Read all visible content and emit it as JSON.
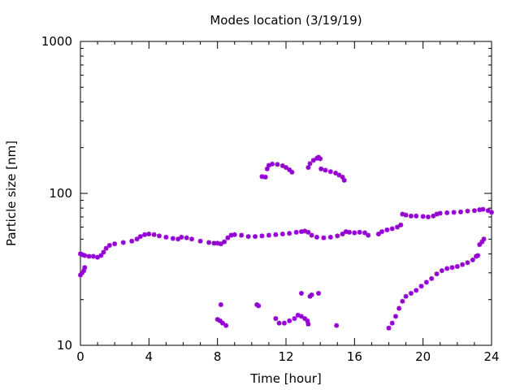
{
  "chart_data": {
    "type": "scatter",
    "title": "Modes location (3/19/19)",
    "xlabel": "Time [hour]",
    "ylabel": "Particle size [nm]",
    "xlim": [
      0,
      24
    ],
    "ylim": [
      10,
      1000
    ],
    "yscale": "log",
    "grid": false,
    "legend": "none",
    "marker_color": "#9400D3",
    "x_ticks": [
      0,
      4,
      8,
      12,
      16,
      20,
      24
    ],
    "x_tick_labels": [
      "0",
      "4",
      "8",
      "12",
      "16",
      "20",
      "24"
    ],
    "y_ticks": [
      10,
      100,
      1000
    ],
    "y_tick_labels": [
      "10",
      "100",
      "1000"
    ],
    "series": [
      {
        "points": [
          [
            0.0,
            40
          ],
          [
            0.1,
            39.5
          ],
          [
            0.25,
            39
          ],
          [
            0.5,
            38.5
          ],
          [
            0.75,
            38.5
          ],
          [
            1.0,
            38
          ],
          [
            1.2,
            39
          ],
          [
            1.35,
            41
          ],
          [
            1.5,
            43.5
          ],
          [
            1.7,
            45.5
          ],
          [
            2.0,
            46.5
          ],
          [
            2.5,
            47.5
          ],
          [
            3.0,
            48.5
          ],
          [
            3.3,
            50
          ],
          [
            3.5,
            52
          ],
          [
            3.75,
            53.5
          ],
          [
            4.0,
            54
          ],
          [
            4.3,
            53.5
          ],
          [
            4.6,
            52.5
          ],
          [
            5.0,
            51.5
          ],
          [
            5.4,
            50.5
          ],
          [
            5.7,
            50
          ],
          [
            5.9,
            51.5
          ],
          [
            6.2,
            51
          ],
          [
            6.5,
            50
          ],
          [
            7.0,
            48.5
          ],
          [
            7.5,
            47.5
          ],
          [
            7.8,
            47
          ],
          [
            8.0,
            47
          ],
          [
            8.2,
            46.5
          ],
          [
            8.4,
            48
          ],
          [
            8.6,
            51
          ],
          [
            8.8,
            53
          ],
          [
            9.0,
            53.5
          ],
          [
            9.4,
            53
          ],
          [
            9.8,
            52
          ],
          [
            10.2,
            52
          ],
          [
            10.6,
            52.5
          ],
          [
            11.0,
            53
          ],
          [
            11.4,
            53.5
          ],
          [
            11.8,
            54
          ],
          [
            12.2,
            54.5
          ],
          [
            12.6,
            55.5
          ],
          [
            12.9,
            56
          ],
          [
            13.1,
            56.5
          ],
          [
            13.3,
            55.5
          ],
          [
            13.5,
            53
          ],
          [
            13.8,
            51.5
          ],
          [
            14.2,
            51
          ],
          [
            14.6,
            51.5
          ],
          [
            15.0,
            52.5
          ],
          [
            15.3,
            54
          ],
          [
            15.5,
            56
          ],
          [
            15.7,
            55.5
          ],
          [
            16.0,
            55
          ],
          [
            16.3,
            55.5
          ],
          [
            16.6,
            55
          ],
          [
            16.8,
            53
          ],
          [
            17.4,
            54
          ],
          [
            17.6,
            56
          ],
          [
            17.9,
            57.5
          ],
          [
            18.2,
            58.5
          ],
          [
            18.5,
            60
          ],
          [
            18.7,
            62
          ],
          [
            18.8,
            73
          ],
          [
            19.0,
            72
          ],
          [
            19.3,
            71
          ],
          [
            19.6,
            71
          ],
          [
            20.0,
            70.5
          ],
          [
            20.3,
            70
          ],
          [
            20.6,
            71
          ],
          [
            20.8,
            73
          ],
          [
            21.0,
            74
          ],
          [
            21.4,
            74.5
          ],
          [
            21.8,
            75
          ],
          [
            22.2,
            75.5
          ],
          [
            22.6,
            76.5
          ],
          [
            23.0,
            77
          ],
          [
            23.3,
            78
          ],
          [
            23.5,
            78.5
          ],
          [
            23.8,
            77
          ],
          [
            24.0,
            75
          ],
          [
            0.0,
            29
          ],
          [
            0.1,
            30
          ],
          [
            0.2,
            31
          ],
          [
            0.25,
            32.5
          ],
          [
            10.6,
            129
          ],
          [
            10.8,
            128
          ],
          [
            10.9,
            145
          ],
          [
            11.0,
            153
          ],
          [
            11.2,
            156
          ],
          [
            11.5,
            155
          ],
          [
            11.8,
            152
          ],
          [
            12.0,
            148
          ],
          [
            12.2,
            143
          ],
          [
            12.35,
            138
          ],
          [
            13.3,
            148
          ],
          [
            13.4,
            157
          ],
          [
            13.6,
            165
          ],
          [
            13.8,
            170
          ],
          [
            13.9,
            173
          ],
          [
            14.0,
            169
          ],
          [
            14.05,
            145
          ],
          [
            14.3,
            142
          ],
          [
            14.6,
            139
          ],
          [
            14.9,
            136
          ],
          [
            15.1,
            132
          ],
          [
            15.3,
            128
          ],
          [
            15.4,
            122
          ],
          [
            8.0,
            14.8
          ],
          [
            8.15,
            14.5
          ],
          [
            8.3,
            14
          ],
          [
            8.5,
            13.5
          ],
          [
            8.2,
            18.5
          ],
          [
            10.3,
            18.5
          ],
          [
            10.4,
            18.2
          ],
          [
            11.4,
            15
          ],
          [
            11.6,
            14
          ],
          [
            11.9,
            14
          ],
          [
            12.2,
            14.5
          ],
          [
            12.5,
            15
          ],
          [
            12.7,
            15.8
          ],
          [
            12.9,
            15.5
          ],
          [
            13.1,
            15
          ],
          [
            13.25,
            14.5
          ],
          [
            13.3,
            13.8
          ],
          [
            12.9,
            22
          ],
          [
            13.4,
            21
          ],
          [
            13.5,
            21.5
          ],
          [
            13.9,
            22
          ],
          [
            14.95,
            13.5
          ],
          [
            18.0,
            13
          ],
          [
            18.2,
            14
          ],
          [
            18.4,
            15.5
          ],
          [
            18.6,
            17.5
          ],
          [
            18.8,
            19.5
          ],
          [
            19.0,
            21
          ],
          [
            19.3,
            22
          ],
          [
            19.6,
            23
          ],
          [
            19.9,
            24.5
          ],
          [
            20.2,
            26
          ],
          [
            20.5,
            27.5
          ],
          [
            20.8,
            29.5
          ],
          [
            21.1,
            31
          ],
          [
            21.4,
            32
          ],
          [
            21.7,
            32.5
          ],
          [
            22.0,
            33
          ],
          [
            22.3,
            34
          ],
          [
            22.6,
            35
          ],
          [
            22.9,
            36.5
          ],
          [
            23.1,
            38.5
          ],
          [
            23.2,
            39
          ],
          [
            23.3,
            46
          ],
          [
            23.45,
            48
          ],
          [
            23.55,
            50
          ]
        ]
      }
    ]
  }
}
